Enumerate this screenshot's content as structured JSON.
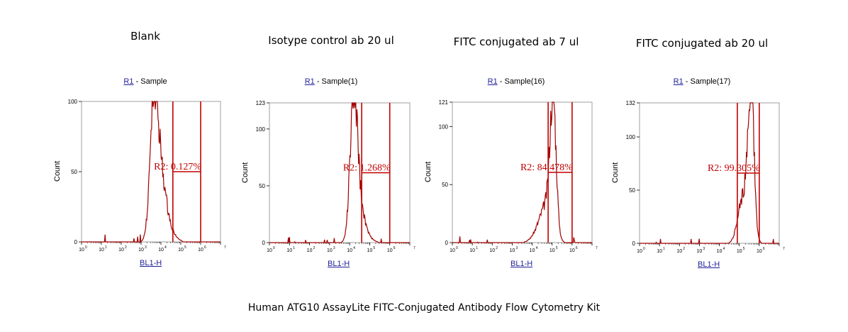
{
  "caption": "Human ATG10 AssayLite FITC-Conjugated Antibody Flow Cytometry Kit",
  "colors": {
    "curve": "#a00000",
    "gate": "#c00000",
    "axis": "#000000",
    "link": "#1f1f99"
  },
  "chart_data": [
    {
      "type": "area",
      "title": "Blank",
      "subtitle_link": "R1",
      "subtitle_text": " - Sample",
      "xlabel": "BL1-H",
      "ylabel": "Count",
      "x_scale": "log",
      "xlim": [
        0,
        7
      ],
      "ylim": [
        0,
        100
      ],
      "y_ticks": [
        0,
        50,
        100
      ],
      "x_tick_labels": [
        "10",
        "10",
        "10",
        "10",
        "10",
        "10",
        "10"
      ],
      "gate_label": "R2",
      "gate_percent": "0.127%",
      "gate_range": [
        4.6,
        6.0
      ],
      "peaks": [
        {
          "center": 3.65,
          "height": 93,
          "width": 0.2
        },
        {
          "center": 4.0,
          "height": 40,
          "width": 0.25
        },
        {
          "center": 4.4,
          "height": 8,
          "width": 0.3
        }
      ],
      "noise_seed": 1
    },
    {
      "type": "area",
      "title": "Isotype control ab 20 ul",
      "subtitle_link": "R1",
      "subtitle_text": " - Sample(1)",
      "xlabel": "BL1-H",
      "ylabel": "Count",
      "x_scale": "log",
      "xlim": [
        0,
        7
      ],
      "ylim": [
        0,
        123
      ],
      "y_ticks": [
        0,
        50,
        100,
        123
      ],
      "x_tick_labels": [
        "10",
        "10",
        "10",
        "10",
        "10",
        "10",
        "10"
      ],
      "gate_label": "R2",
      "gate_percent": "1.268%",
      "gate_range": [
        4.6,
        6.0
      ],
      "peaks": [
        {
          "center": 4.2,
          "height": 115,
          "width": 0.18
        },
        {
          "center": 4.45,
          "height": 30,
          "width": 0.25
        },
        {
          "center": 4.8,
          "height": 5,
          "width": 0.3
        }
      ],
      "noise_seed": 2
    },
    {
      "type": "area",
      "title": "FITC conjugated ab 7 ul",
      "subtitle_link": "R1",
      "subtitle_text": " - Sample(16)",
      "xlabel": "BL1-H",
      "ylabel": "Count",
      "x_scale": "log",
      "xlim": [
        0,
        7
      ],
      "ylim": [
        0,
        121
      ],
      "y_ticks": [
        0,
        50,
        100,
        121
      ],
      "x_tick_labels": [
        "10",
        "10",
        "10",
        "10",
        "10",
        "10",
        "10"
      ],
      "gate_label": "R2",
      "gate_percent": "84.478%",
      "gate_range": [
        4.8,
        6.0
      ],
      "peaks": [
        {
          "center": 5.05,
          "height": 112,
          "width": 0.15
        },
        {
          "center": 4.75,
          "height": 30,
          "width": 0.3
        },
        {
          "center": 4.3,
          "height": 8,
          "width": 0.3
        }
      ],
      "noise_seed": 3
    },
    {
      "type": "area",
      "title": "FITC conjugated ab 20 ul",
      "subtitle_link": "R1",
      "subtitle_text": " - Sample(17)",
      "xlabel": "BL1-H",
      "ylabel": "Count",
      "x_scale": "log",
      "xlim": [
        0,
        7
      ],
      "ylim": [
        0,
        132
      ],
      "y_ticks": [
        0,
        50,
        100,
        132
      ],
      "x_tick_labels": [
        "10",
        "10",
        "10",
        "10",
        "10",
        "10",
        "10"
      ],
      "gate_label": "R2",
      "gate_percent": "99.305%",
      "gate_range": [
        4.9,
        6.0
      ],
      "peaks": [
        {
          "center": 5.6,
          "height": 125,
          "width": 0.14
        },
        {
          "center": 5.35,
          "height": 45,
          "width": 0.25
        },
        {
          "center": 5.0,
          "height": 15,
          "width": 0.2
        }
      ],
      "noise_seed": 4
    }
  ]
}
